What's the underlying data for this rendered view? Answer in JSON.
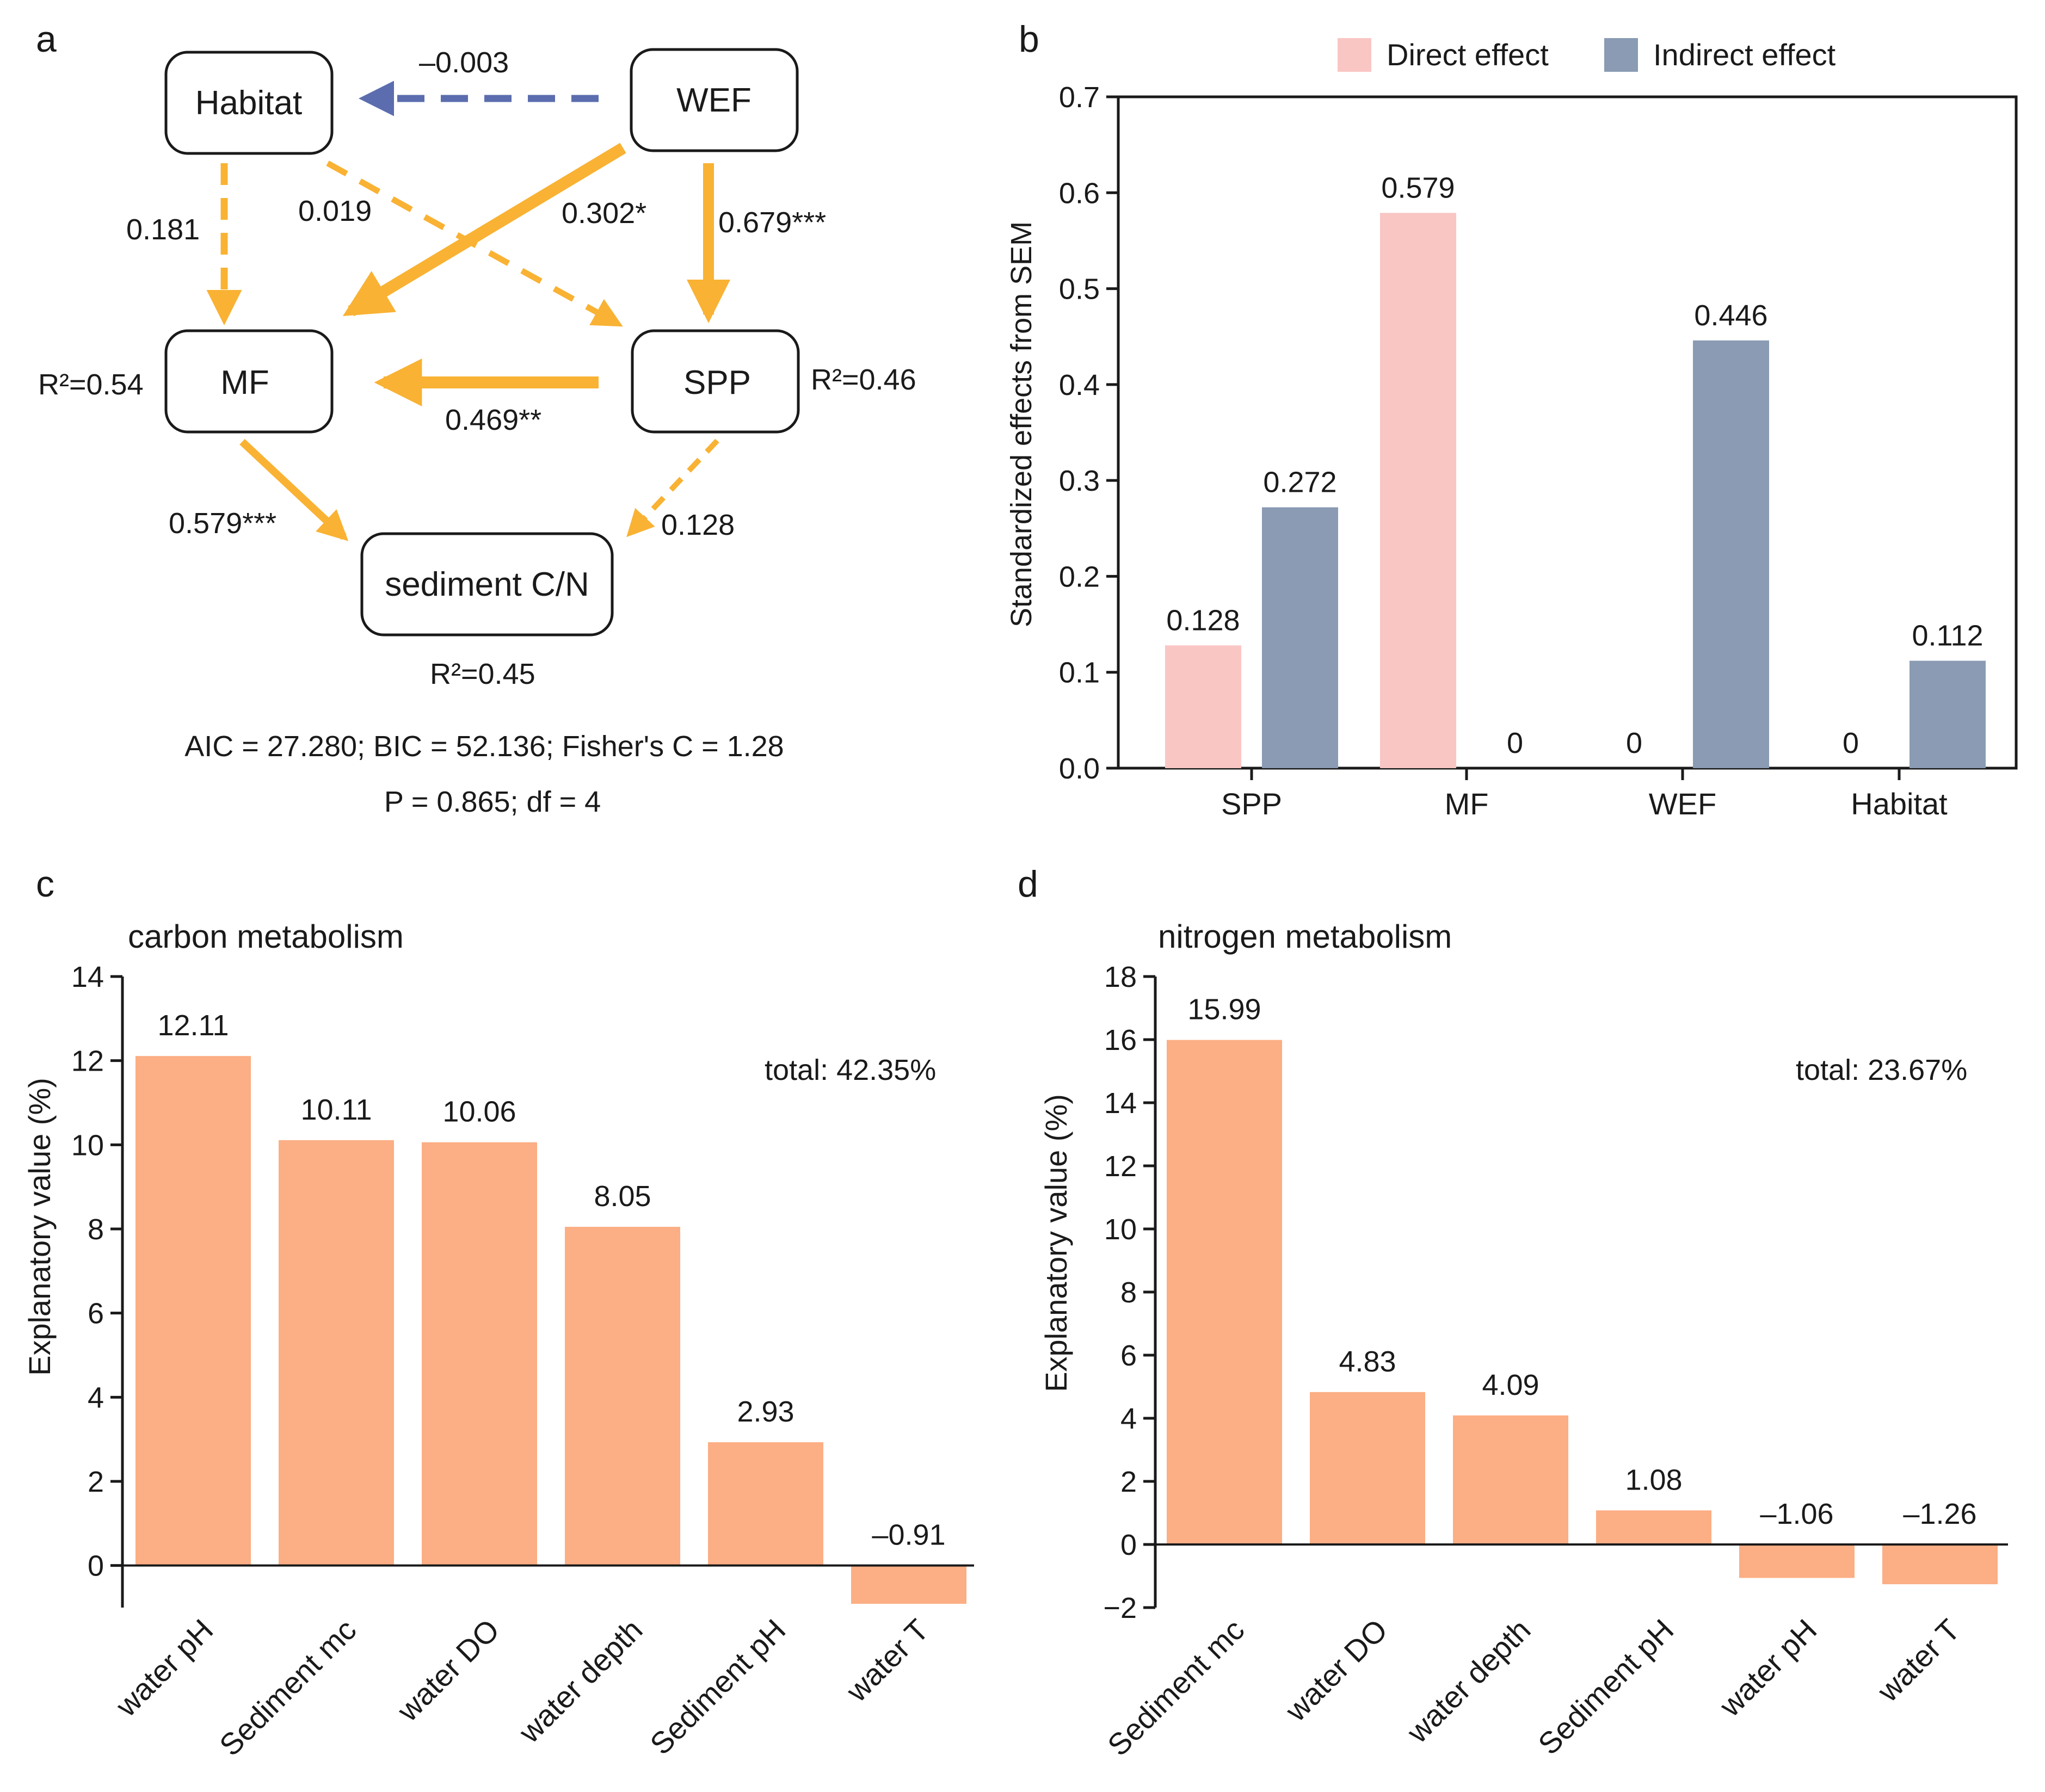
{
  "panels": {
    "a": "a",
    "b": "b",
    "c": "c",
    "d": "d"
  },
  "colors": {
    "path_positive": "#F9B233",
    "path_negative": "#5B6DAE",
    "direct": "#F9C6C4",
    "indirect": "#8A9BB3",
    "bar_cd": "#FCAE84"
  },
  "chart_data": [
    {
      "type": "diagram",
      "panel": "a",
      "nodes": [
        {
          "id": "habitat",
          "label": "Habitat"
        },
        {
          "id": "wef",
          "label": "WEF"
        },
        {
          "id": "mf",
          "label": "MF",
          "r2": "R²=0.54"
        },
        {
          "id": "spp",
          "label": "SPP",
          "r2": "R²=0.46"
        },
        {
          "id": "sed",
          "label": "sediment C/N",
          "r2": "R²=0.45"
        }
      ],
      "paths": [
        {
          "from": "WEF",
          "to": "Habitat",
          "coef": "–0.003",
          "significant": false,
          "sign": "negative"
        },
        {
          "from": "Habitat",
          "to": "MF",
          "coef": "0.181",
          "significant": false,
          "sign": "positive"
        },
        {
          "from": "Habitat",
          "to": "SPP",
          "coef": "0.019",
          "significant": false,
          "sign": "positive"
        },
        {
          "from": "WEF",
          "to": "MF",
          "coef": "0.302*",
          "significant": true,
          "sign": "positive"
        },
        {
          "from": "WEF",
          "to": "SPP",
          "coef": "0.679***",
          "significant": true,
          "sign": "positive"
        },
        {
          "from": "SPP",
          "to": "MF",
          "coef": "0.469**",
          "significant": true,
          "sign": "positive"
        },
        {
          "from": "MF",
          "to": "sediment C/N",
          "coef": "0.579***",
          "significant": true,
          "sign": "positive"
        },
        {
          "from": "SPP",
          "to": "sediment C/N",
          "coef": "0.128",
          "significant": false,
          "sign": "positive"
        }
      ],
      "fit_line1": "AIC = 27.280; BIC = 52.136; Fisher's C = 1.28",
      "fit_line2": "P = 0.865; df = 4"
    },
    {
      "type": "bar",
      "panel": "b",
      "categories": [
        "SPP",
        "MF",
        "WEF",
        "Habitat"
      ],
      "series": [
        {
          "name": "Direct effect",
          "values": [
            0.128,
            0.579,
            0,
            0
          ],
          "labels": [
            "0.128",
            "0.579",
            "0",
            "0"
          ]
        },
        {
          "name": "Indirect effect",
          "values": [
            0.272,
            0,
            0.446,
            0.112
          ],
          "labels": [
            "0.272",
            "0",
            "0.446",
            "0.112"
          ]
        }
      ],
      "ylabel": "Standardized effects from SEM",
      "ylim": [
        0,
        0.7
      ],
      "yticks": [
        "0.0",
        "0.1",
        "0.2",
        "0.3",
        "0.4",
        "0.5",
        "0.6",
        "0.7"
      ],
      "legend": "top"
    },
    {
      "type": "bar",
      "panel": "c",
      "title": "carbon metabolism",
      "categories": [
        "water pH",
        "Sediment mc",
        "water DO",
        "water depth",
        "Sediment pH",
        "water T"
      ],
      "values": [
        12.11,
        10.11,
        10.06,
        8.05,
        2.93,
        -0.91
      ],
      "labels": [
        "12.11",
        "10.11",
        "10.06",
        "8.05",
        "2.93",
        "–0.91"
      ],
      "ylabel": "Explanatory value (%)",
      "ylim": [
        -1,
        14
      ],
      "yticks": [
        "0",
        "2",
        "4",
        "6",
        "8",
        "10",
        "12",
        "14"
      ],
      "annotation": "total: 42.35%"
    },
    {
      "type": "bar",
      "panel": "d",
      "title": "nitrogen metabolism",
      "categories": [
        "Sediment mc",
        "water DO",
        "water depth",
        "Sediment pH",
        "water pH",
        "water T"
      ],
      "values": [
        15.99,
        4.83,
        4.09,
        1.08,
        -1.06,
        -1.26
      ],
      "labels": [
        "15.99",
        "4.83",
        "4.09",
        "1.08",
        "–1.06",
        "–1.26"
      ],
      "ylabel": "Explanatory value (%)",
      "ylim": [
        -2,
        18
      ],
      "yticks": [
        "−2",
        "0",
        "2",
        "4",
        "6",
        "8",
        "10",
        "12",
        "14",
        "16",
        "18"
      ],
      "annotation": "total: 23.67%"
    }
  ]
}
